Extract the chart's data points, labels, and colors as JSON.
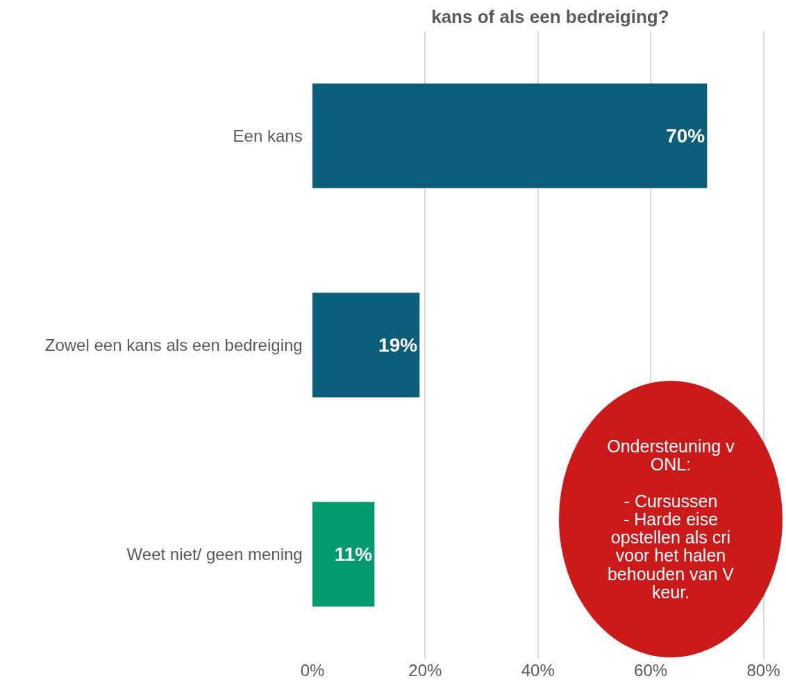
{
  "chart_data": {
    "type": "bar",
    "orientation": "horizontal",
    "title": "kans of als een bedreiging?",
    "categories": [
      "Een kans",
      "Zowel een kans als een bedreiging",
      "Weet niet/ geen mening"
    ],
    "values": [
      70,
      19,
      11
    ],
    "colors": [
      "#0b5e7a",
      "#0b5e7a",
      "#009a6e"
    ],
    "value_labels": [
      "70%",
      "19%",
      "11%"
    ],
    "xlim": [
      0,
      84
    ],
    "xticks": [
      {
        "value": 0,
        "label": "0%"
      },
      {
        "value": 20,
        "label": "20%"
      },
      {
        "value": 40,
        "label": "40%"
      },
      {
        "value": 60,
        "label": "60%"
      },
      {
        "value": 80,
        "label": "80%"
      }
    ],
    "grid": "x",
    "annotations": [
      "Ondersteuning v\nONL:\n\n- Cursussen\n- Harde eise\nopstellen als cri\nvoor het halen\nbehouden van V\nkeur."
    ]
  }
}
